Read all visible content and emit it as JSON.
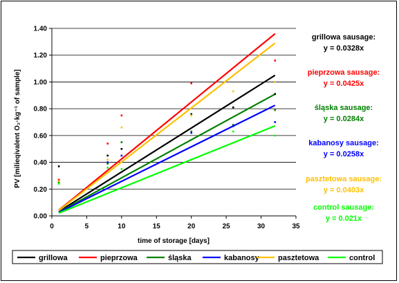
{
  "chart_data": {
    "type": "scatter",
    "xlabel": "time of storage [days]",
    "ylabel": "PV [milieqivalent O₂·kg⁻¹ of sample]",
    "xlim": [
      0,
      35
    ],
    "ylim": [
      0,
      1.4
    ],
    "x_ticks": [
      "0",
      "5",
      "10",
      "15",
      "20",
      "25",
      "30",
      "35"
    ],
    "y_ticks": [
      "0.00",
      "0.20",
      "0.40",
      "0.60",
      "0.80",
      "1.00",
      "1.20",
      "1.40"
    ],
    "grid": "horizontal",
    "legend_position": "bottom",
    "trend_x_range": [
      1,
      32
    ],
    "series": [
      {
        "name": "grillowa",
        "color": "#000000",
        "slope": 0.0328,
        "equation_label": "grillowa sausage:",
        "equation": "y = 0.0328x",
        "points": [
          [
            1,
            0.37
          ],
          [
            8,
            0.45
          ],
          [
            10,
            0.5
          ],
          [
            20,
            0.76
          ],
          [
            26,
            0.81
          ],
          [
            32,
            0.91
          ]
        ]
      },
      {
        "name": "pieprzowa",
        "color": "#ff0000",
        "slope": 0.0425,
        "equation_label": "pieprzowa sausage:",
        "equation": "y = 0.0425x",
        "points": [
          [
            1,
            0.27
          ],
          [
            8,
            0.54
          ],
          [
            10,
            0.75
          ],
          [
            20,
            0.99
          ],
          [
            32,
            1.16
          ]
        ]
      },
      {
        "name": "śląska",
        "color": "#008000",
        "slope": 0.0284,
        "equation_label": "śląska sausage:",
        "equation": "y = 0.0284x",
        "points": [
          [
            1,
            0.25
          ],
          [
            8,
            0.39
          ],
          [
            10,
            0.55
          ],
          [
            20,
            0.63
          ],
          [
            26,
            0.68
          ],
          [
            32,
            0.79
          ]
        ]
      },
      {
        "name": "kabanosy",
        "color": "#0000ff",
        "slope": 0.0258,
        "equation_label": "kabanosy sausage:",
        "equation": "y = 0.0258x",
        "points": [
          [
            1,
            0.26
          ],
          [
            8,
            0.4
          ],
          [
            10,
            0.45
          ],
          [
            20,
            0.62
          ],
          [
            26,
            0.67
          ],
          [
            32,
            0.7
          ]
        ]
      },
      {
        "name": "pasztetowa",
        "color": "#ffc000",
        "slope": 0.0403,
        "equation_label": "pasztetowa sausage:",
        "equation": "y = 0.0403x",
        "points": [
          [
            1,
            0.26
          ],
          [
            8,
            0.42
          ],
          [
            10,
            0.66
          ],
          [
            20,
            0.75
          ],
          [
            26,
            0.93
          ],
          [
            32,
            1.0
          ]
        ]
      },
      {
        "name": "control",
        "color": "#00ff00",
        "slope": 0.021,
        "equation_label": "control sausage:",
        "equation": "y = 0.021x",
        "points": [
          [
            1,
            0.24
          ],
          [
            8,
            0.36
          ],
          [
            10,
            0.35
          ],
          [
            20,
            0.42
          ],
          [
            26,
            0.63
          ],
          [
            32,
            0.6
          ]
        ]
      }
    ]
  }
}
